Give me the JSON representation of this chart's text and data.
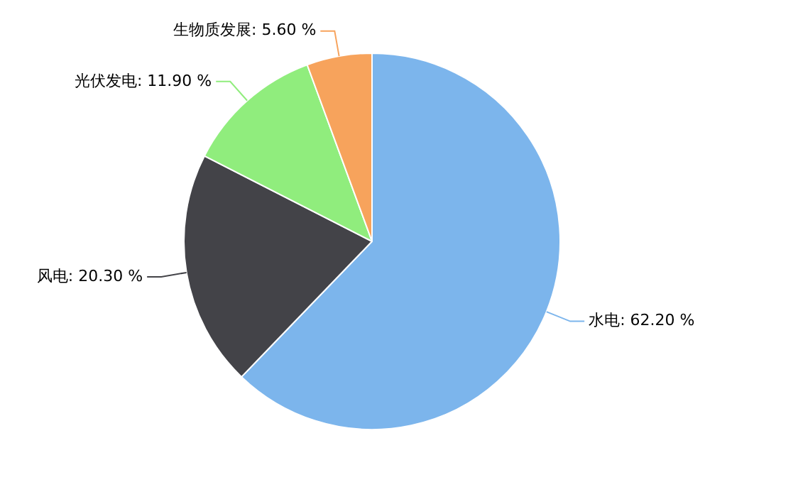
{
  "chart_data": {
    "type": "pie",
    "categories": [
      "水电",
      "风电",
      "光伏发电",
      "生物质发展"
    ],
    "values": [
      62.2,
      20.3,
      11.9,
      5.6
    ],
    "value_labels": [
      "62.20 %",
      "20.30 %",
      "11.90 %",
      "5.60 %"
    ],
    "colors": [
      "#7cb5ec",
      "#434348",
      "#90ed7d",
      "#f7a35c"
    ],
    "legend": false
  }
}
